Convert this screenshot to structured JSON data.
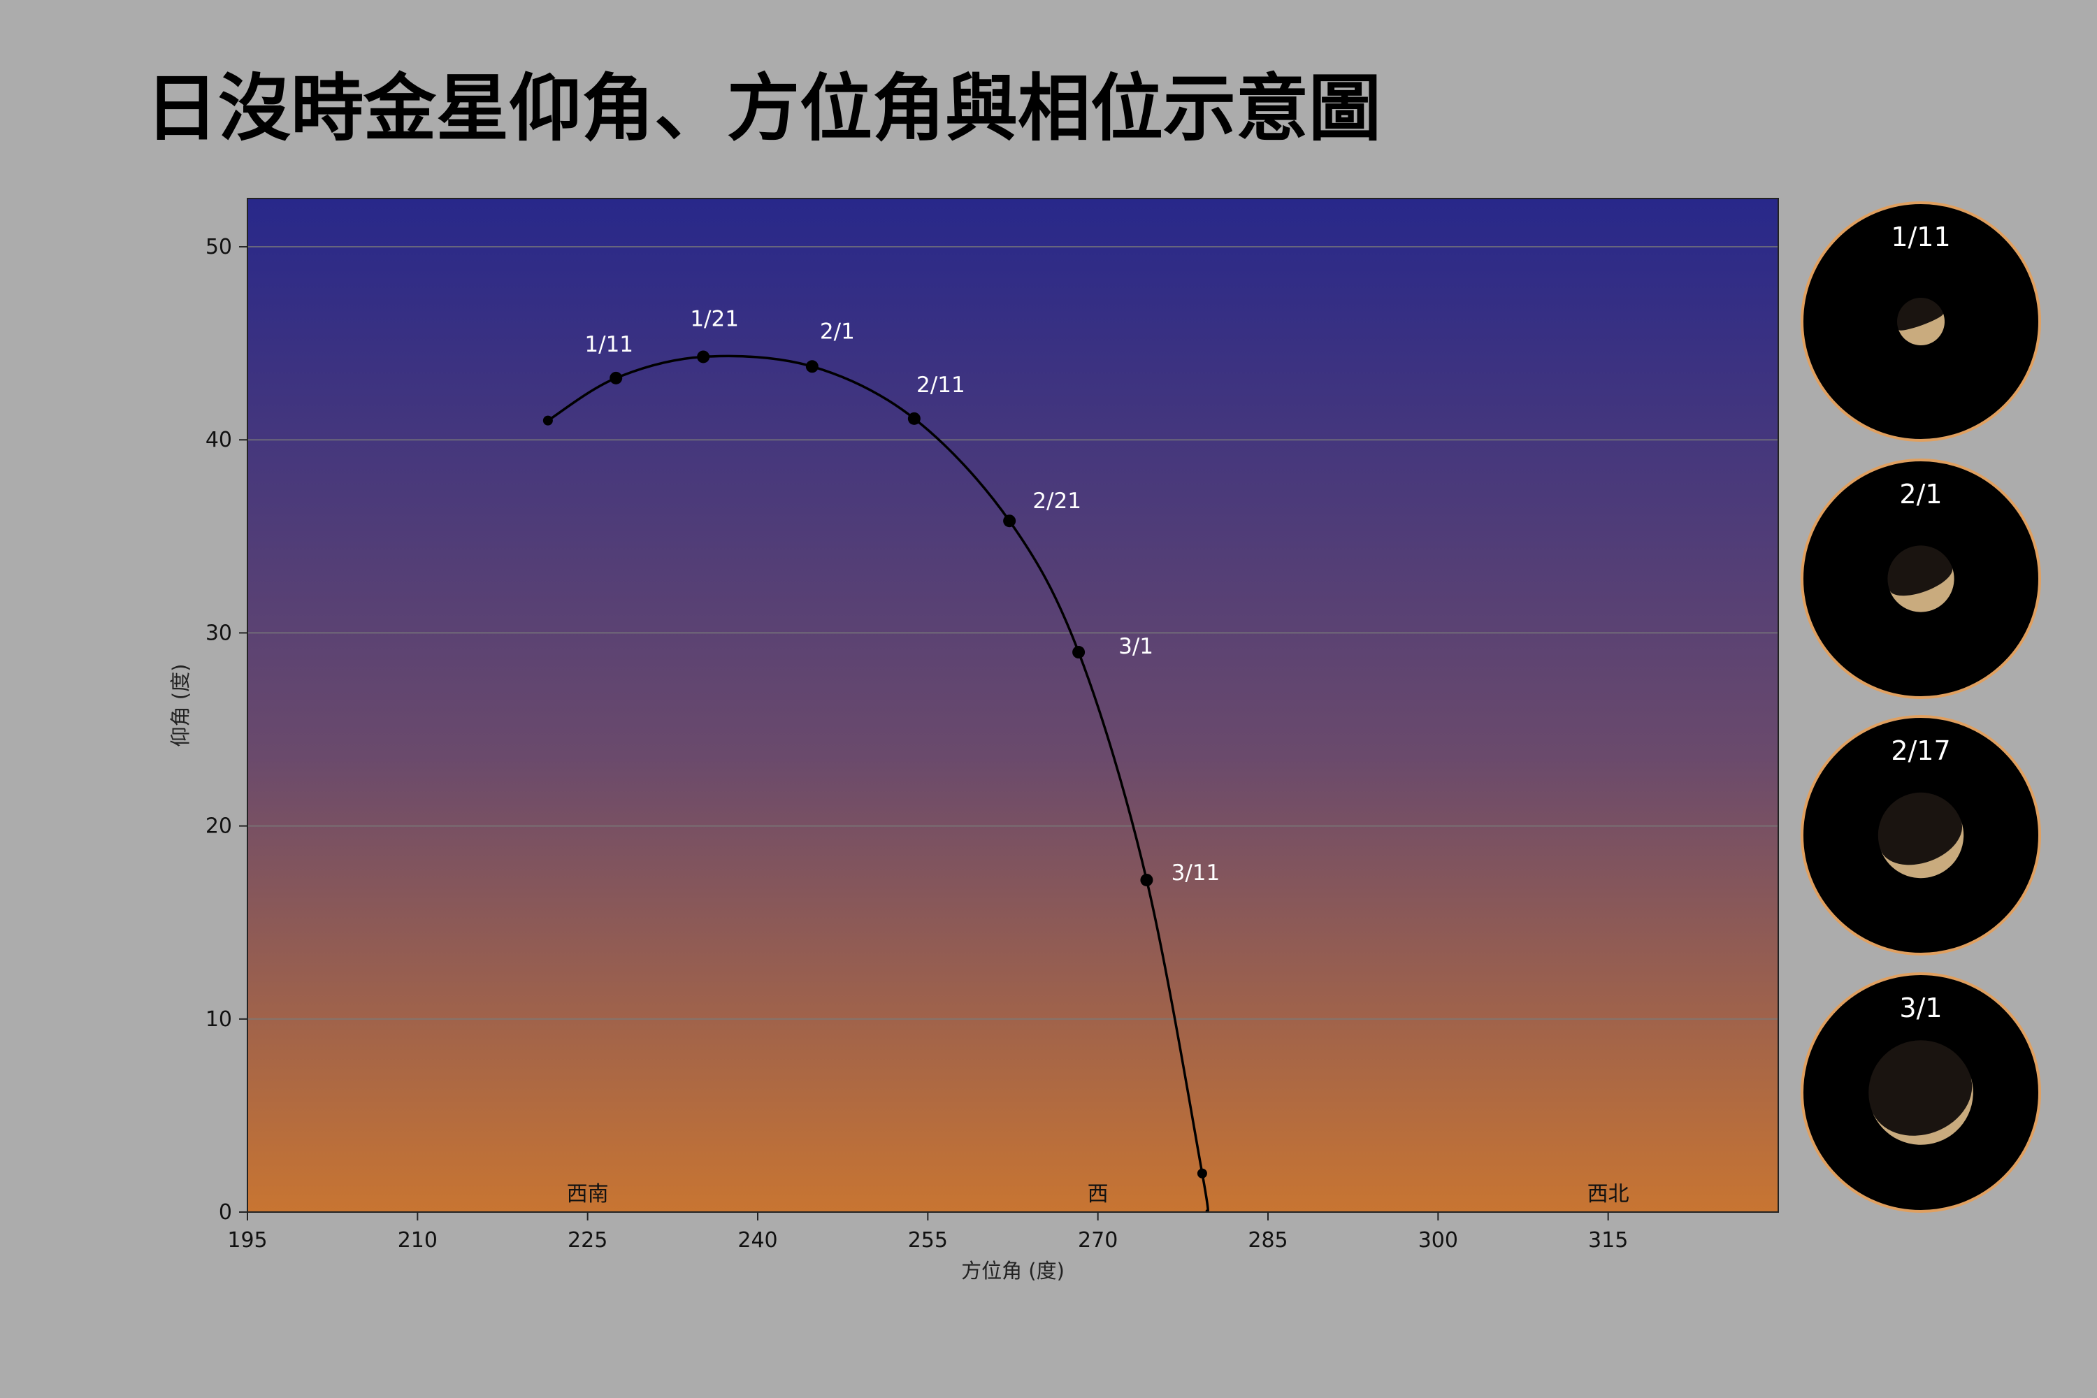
{
  "title": "日沒時金星仰角、方位角與相位示意圖",
  "colors": {
    "page_bg": "#acacac",
    "sky_top": "#28288a",
    "sky_mid": "#6a4a6c",
    "sky_bottom": "#c87532",
    "curve": "#000000",
    "label": "#ffffff",
    "phase_ring": "#e0a060",
    "venus_lit": "#d8b888"
  },
  "chart_data": {
    "type": "line",
    "xlabel": "方位角 (度)",
    "ylabel": "仰角 (度)",
    "xlim": [
      195,
      330
    ],
    "ylim": [
      0,
      52.5
    ],
    "xticks": [
      195,
      210,
      225,
      240,
      255,
      270,
      285,
      300,
      315
    ],
    "yticks": [
      0,
      10,
      20,
      30,
      40,
      50
    ],
    "grid": "horizontal",
    "curve": {
      "x": [
        221.5,
        227.5,
        235.2,
        244.8,
        253.8,
        262.2,
        268.3,
        274.3,
        279.2,
        279.6
      ],
      "y": [
        41.0,
        43.2,
        44.3,
        43.8,
        41.1,
        35.8,
        29.0,
        17.2,
        2.0,
        0.0
      ]
    },
    "points": [
      {
        "label": "",
        "x": 221.5,
        "y": 41.0
      },
      {
        "label": "1/11",
        "x": 227.5,
        "y": 43.2
      },
      {
        "label": "1/21",
        "x": 235.2,
        "y": 44.3
      },
      {
        "label": "2/1",
        "x": 244.8,
        "y": 43.8
      },
      {
        "label": "2/11",
        "x": 253.8,
        "y": 41.1
      },
      {
        "label": "2/21",
        "x": 262.2,
        "y": 35.8
      },
      {
        "label": "3/1",
        "x": 268.3,
        "y": 29.0
      },
      {
        "label": "3/11",
        "x": 274.3,
        "y": 17.2
      },
      {
        "label": "",
        "x": 279.2,
        "y": 2.0
      }
    ],
    "direction_labels": [
      {
        "label": "西南",
        "x": 225
      },
      {
        "label": "西",
        "x": 270
      },
      {
        "label": "西北",
        "x": 315
      }
    ]
  },
  "phases": [
    {
      "label": "1/11",
      "illumination": 0.42,
      "size": 0.2
    },
    {
      "label": "2/1",
      "illumination": 0.3,
      "size": 0.28
    },
    {
      "label": "2/17",
      "illumination": 0.18,
      "size": 0.36
    },
    {
      "label": "3/1",
      "illumination": 0.1,
      "size": 0.44
    }
  ]
}
